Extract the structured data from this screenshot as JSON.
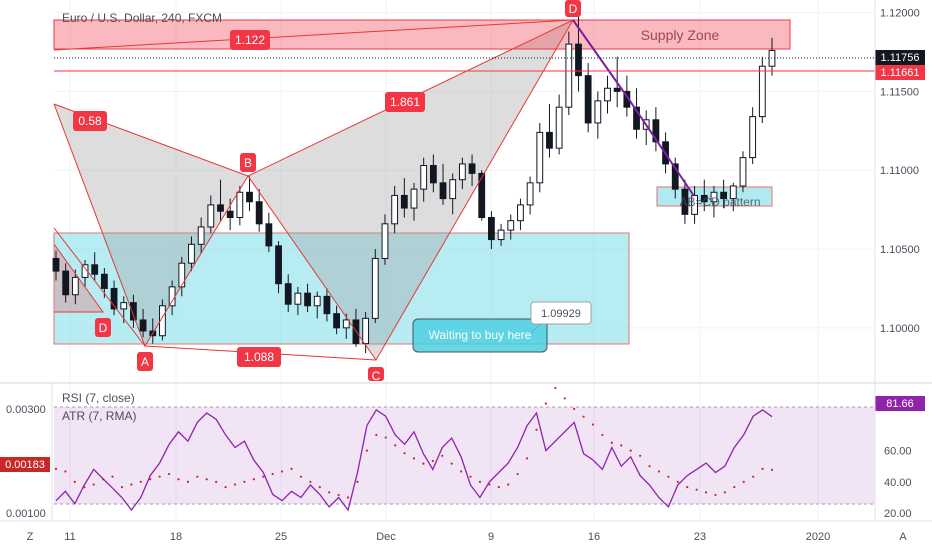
{
  "chart_data": {
    "type": "candlestick",
    "title": "Euro / U.S. Dollar, 240, FXCM",
    "symbol": "EURUSD",
    "timeframe": "240",
    "price_axis": {
      "ylim": [
        1.0965,
        1.1208
      ],
      "ticks": [
        "1.12000",
        "1.11500",
        "1.11000",
        "1.10500",
        "1.10000"
      ],
      "tick_values": [
        1.12,
        1.115,
        1.11,
        1.105,
        1.1
      ]
    },
    "time_axis": {
      "ticks": [
        "11",
        "18",
        "25",
        "Dec",
        "9",
        "16",
        "23",
        "2020"
      ]
    },
    "price_tags": [
      {
        "text": "1.11756",
        "value": 1.11756,
        "color": "#131722",
        "style": "dotted"
      },
      {
        "text": "1.11661",
        "value": 1.11661,
        "color": "#f23645",
        "style": "solid"
      }
    ],
    "candles": [
      {
        "o": 1.1044,
        "h": 1.1049,
        "l": 1.103,
        "c": 1.1036
      },
      {
        "o": 1.1036,
        "h": 1.1041,
        "l": 1.1016,
        "c": 1.1021
      },
      {
        "o": 1.1021,
        "h": 1.1037,
        "l": 1.1015,
        "c": 1.1032
      },
      {
        "o": 1.1032,
        "h": 1.1043,
        "l": 1.1026,
        "c": 1.104
      },
      {
        "o": 1.104,
        "h": 1.1048,
        "l": 1.103,
        "c": 1.1034
      },
      {
        "o": 1.1034,
        "h": 1.1038,
        "l": 1.1019,
        "c": 1.1025
      },
      {
        "o": 1.1025,
        "h": 1.103,
        "l": 1.1008,
        "c": 1.1012
      },
      {
        "o": 1.1012,
        "h": 1.102,
        "l": 1.1003,
        "c": 1.1016
      },
      {
        "o": 1.1016,
        "h": 1.1021,
        "l": 1.1,
        "c": 1.1005
      },
      {
        "o": 1.1005,
        "h": 1.1012,
        "l": 1.0994,
        "c": 1.0998
      },
      {
        "o": 1.0998,
        "h": 1.1006,
        "l": 1.099,
        "c": 1.0995
      },
      {
        "o": 1.0995,
        "h": 1.1018,
        "l": 1.0992,
        "c": 1.1014
      },
      {
        "o": 1.1014,
        "h": 1.103,
        "l": 1.1008,
        "c": 1.1026
      },
      {
        "o": 1.1026,
        "h": 1.1045,
        "l": 1.102,
        "c": 1.1041
      },
      {
        "o": 1.1041,
        "h": 1.1058,
        "l": 1.1036,
        "c": 1.1053
      },
      {
        "o": 1.1053,
        "h": 1.107,
        "l": 1.1047,
        "c": 1.1064
      },
      {
        "o": 1.1064,
        "h": 1.1084,
        "l": 1.106,
        "c": 1.1078
      },
      {
        "o": 1.1078,
        "h": 1.1094,
        "l": 1.1068,
        "c": 1.1074
      },
      {
        "o": 1.1074,
        "h": 1.1082,
        "l": 1.1062,
        "c": 1.107
      },
      {
        "o": 1.107,
        "h": 1.109,
        "l": 1.1065,
        "c": 1.1086
      },
      {
        "o": 1.1086,
        "h": 1.1096,
        "l": 1.1074,
        "c": 1.108
      },
      {
        "o": 1.108,
        "h": 1.1088,
        "l": 1.1061,
        "c": 1.1066
      },
      {
        "o": 1.1066,
        "h": 1.1073,
        "l": 1.1048,
        "c": 1.1052
      },
      {
        "o": 1.1052,
        "h": 1.1055,
        "l": 1.1022,
        "c": 1.1028
      },
      {
        "o": 1.1028,
        "h": 1.1034,
        "l": 1.101,
        "c": 1.1015
      },
      {
        "o": 1.1015,
        "h": 1.1026,
        "l": 1.1008,
        "c": 1.1022
      },
      {
        "o": 1.1022,
        "h": 1.1028,
        "l": 1.101,
        "c": 1.1014
      },
      {
        "o": 1.1014,
        "h": 1.1023,
        "l": 1.1006,
        "c": 1.102
      },
      {
        "o": 1.102,
        "h": 1.1025,
        "l": 1.1004,
        "c": 1.1009
      },
      {
        "o": 1.1009,
        "h": 1.1014,
        "l": 1.0996,
        "c": 1.1
      },
      {
        "o": 1.1,
        "h": 1.1009,
        "l": 1.0993,
        "c": 1.1005
      },
      {
        "o": 1.1005,
        "h": 1.1012,
        "l": 1.0988,
        "c": 1.099
      },
      {
        "o": 1.099,
        "h": 1.101,
        "l": 1.0984,
        "c": 1.1006
      },
      {
        "o": 1.1006,
        "h": 1.105,
        "l": 1.1003,
        "c": 1.1044
      },
      {
        "o": 1.1044,
        "h": 1.1072,
        "l": 1.104,
        "c": 1.1066
      },
      {
        "o": 1.1066,
        "h": 1.109,
        "l": 1.106,
        "c": 1.1084
      },
      {
        "o": 1.1084,
        "h": 1.1095,
        "l": 1.107,
        "c": 1.1076
      },
      {
        "o": 1.1076,
        "h": 1.1092,
        "l": 1.1068,
        "c": 1.1088
      },
      {
        "o": 1.1088,
        "h": 1.1108,
        "l": 1.108,
        "c": 1.1103
      },
      {
        "o": 1.1103,
        "h": 1.111,
        "l": 1.1086,
        "c": 1.1092
      },
      {
        "o": 1.1092,
        "h": 1.1104,
        "l": 1.1078,
        "c": 1.1082
      },
      {
        "o": 1.1082,
        "h": 1.1098,
        "l": 1.1072,
        "c": 1.1094
      },
      {
        "o": 1.1094,
        "h": 1.1108,
        "l": 1.1088,
        "c": 1.1104
      },
      {
        "o": 1.1104,
        "h": 1.111,
        "l": 1.109,
        "c": 1.1098
      },
      {
        "o": 1.1098,
        "h": 1.11,
        "l": 1.1068,
        "c": 1.107
      },
      {
        "o": 1.107,
        "h": 1.1074,
        "l": 1.105,
        "c": 1.1056
      },
      {
        "o": 1.1056,
        "h": 1.1066,
        "l": 1.1052,
        "c": 1.1062
      },
      {
        "o": 1.1062,
        "h": 1.1072,
        "l": 1.1056,
        "c": 1.1068
      },
      {
        "o": 1.1068,
        "h": 1.1082,
        "l": 1.1062,
        "c": 1.1078
      },
      {
        "o": 1.1078,
        "h": 1.1096,
        "l": 1.1072,
        "c": 1.1092
      },
      {
        "o": 1.1092,
        "h": 1.113,
        "l": 1.1086,
        "c": 1.1124
      },
      {
        "o": 1.1124,
        "h": 1.1142,
        "l": 1.1108,
        "c": 1.1114
      },
      {
        "o": 1.1114,
        "h": 1.1148,
        "l": 1.111,
        "c": 1.114
      },
      {
        "o": 1.114,
        "h": 1.1188,
        "l": 1.1135,
        "c": 1.118
      },
      {
        "o": 1.118,
        "h": 1.12,
        "l": 1.115,
        "c": 1.116
      },
      {
        "o": 1.116,
        "h": 1.1168,
        "l": 1.1124,
        "c": 1.113
      },
      {
        "o": 1.113,
        "h": 1.115,
        "l": 1.112,
        "c": 1.1144
      },
      {
        "o": 1.1144,
        "h": 1.116,
        "l": 1.1136,
        "c": 1.1152
      },
      {
        "o": 1.1152,
        "h": 1.1172,
        "l": 1.114,
        "c": 1.115
      },
      {
        "o": 1.115,
        "h": 1.116,
        "l": 1.1134,
        "c": 1.114
      },
      {
        "o": 1.114,
        "h": 1.1152,
        "l": 1.112,
        "c": 1.1126
      },
      {
        "o": 1.1126,
        "h": 1.1138,
        "l": 1.1116,
        "c": 1.1132
      },
      {
        "o": 1.1132,
        "h": 1.114,
        "l": 1.1112,
        "c": 1.1118
      },
      {
        "o": 1.1118,
        "h": 1.1124,
        "l": 1.1098,
        "c": 1.1104
      },
      {
        "o": 1.1104,
        "h": 1.1108,
        "l": 1.1082,
        "c": 1.1088
      },
      {
        "o": 1.1088,
        "h": 1.1094,
        "l": 1.1066,
        "c": 1.1072
      },
      {
        "o": 1.1072,
        "h": 1.109,
        "l": 1.1066,
        "c": 1.1084
      },
      {
        "o": 1.1084,
        "h": 1.1094,
        "l": 1.1074,
        "c": 1.108
      },
      {
        "o": 1.108,
        "h": 1.109,
        "l": 1.107,
        "c": 1.1086
      },
      {
        "o": 1.1086,
        "h": 1.1094,
        "l": 1.1076,
        "c": 1.1082
      },
      {
        "o": 1.1082,
        "h": 1.1092,
        "l": 1.1074,
        "c": 1.109
      },
      {
        "o": 1.109,
        "h": 1.1112,
        "l": 1.1086,
        "c": 1.1108
      },
      {
        "o": 1.1108,
        "h": 1.114,
        "l": 1.1104,
        "c": 1.1134
      },
      {
        "o": 1.1134,
        "h": 1.1172,
        "l": 1.113,
        "c": 1.1166
      },
      {
        "o": 1.1166,
        "h": 1.1184,
        "l": 1.116,
        "c": 1.1176
      }
    ],
    "patterns": [
      {
        "type": "harmonic",
        "points": [
          "D",
          "A",
          "B",
          "C",
          "D"
        ],
        "ratios": [
          "0.58",
          "1.861",
          "1.088",
          "1.122"
        ]
      },
      {
        "type": "abcd",
        "label": "AB=CD pattern",
        "color": "#7b1fa2"
      }
    ],
    "zones": [
      {
        "label": "Supply Zone",
        "from": 1.1182,
        "to": 1.12,
        "color": "#f23645"
      },
      {
        "label": "",
        "from": 1.0993,
        "to": 1.1063,
        "color": "#4dd0e1"
      },
      {
        "label": "AB=CD pattern",
        "from": 1.1081,
        "to": 1.1091,
        "color": "#4dd0e1"
      }
    ],
    "annotations": [
      {
        "text": "Waiting to buy here"
      },
      {
        "text": "1.09929",
        "value": 1.09929
      }
    ],
    "point_labels": [
      "D",
      "A",
      "B",
      "C",
      "D"
    ],
    "indicators": [
      {
        "name": "RSI (7, close)",
        "last_value": "81.66",
        "ylim": [
          15,
          100
        ],
        "ticks": [
          "60.00",
          "40.00",
          "20.00"
        ],
        "tick_values": [
          60,
          40,
          20
        ],
        "band": [
          20,
          80
        ],
        "values": [
          28,
          34,
          26,
          38,
          48,
          42,
          36,
          30,
          22,
          30,
          44,
          52,
          64,
          72,
          66,
          78,
          84,
          80,
          70,
          62,
          66,
          54,
          46,
          32,
          28,
          34,
          30,
          38,
          32,
          24,
          30,
          22,
          46,
          76,
          86,
          82,
          70,
          64,
          72,
          58,
          48,
          62,
          68,
          56,
          38,
          30,
          40,
          46,
          52,
          62,
          76,
          84,
          60,
          66,
          72,
          78,
          58,
          54,
          48,
          62,
          50,
          56,
          44,
          38,
          30,
          24,
          38,
          44,
          48,
          52,
          46,
          50,
          62,
          70,
          82,
          86,
          81.66
        ],
        "color": "#8e24aa"
      },
      {
        "name": "ATR (7, RMA)",
        "last_value": "0.00183",
        "ylim": [
          0.00085,
          0.0034
        ],
        "ticks": [
          "0.00300",
          "0.00100"
        ],
        "tick_values": [
          0.003,
          0.001
        ],
        "values": [
          0.00185,
          0.0018,
          0.0016,
          0.0015,
          0.00155,
          0.00165,
          0.0017,
          0.0015,
          0.00155,
          0.0016,
          0.00165,
          0.0017,
          0.00175,
          0.00165,
          0.0016,
          0.0017,
          0.00165,
          0.0016,
          0.0015,
          0.00155,
          0.0016,
          0.00165,
          0.0017,
          0.00175,
          0.0018,
          0.00185,
          0.0017,
          0.0016,
          0.0015,
          0.0014,
          0.00135,
          0.0013,
          0.0016,
          0.0022,
          0.0025,
          0.00245,
          0.0023,
          0.00215,
          0.00205,
          0.00195,
          0.002,
          0.0021,
          0.00195,
          0.0018,
          0.0017,
          0.0016,
          0.00155,
          0.0015,
          0.00155,
          0.00175,
          0.00205,
          0.0026,
          0.0031,
          0.0034,
          0.0032,
          0.003,
          0.00285,
          0.0027,
          0.0025,
          0.00235,
          0.0023,
          0.0022,
          0.0021,
          0.0019,
          0.0018,
          0.0017,
          0.0016,
          0.0015,
          0.00145,
          0.0014,
          0.00135,
          0.0014,
          0.0015,
          0.0016,
          0.0017,
          0.00185,
          0.00183
        ],
        "color": "#c62828"
      }
    ]
  },
  "ui": {
    "bottom_left_button": "Z",
    "bottom_right_button": "A"
  }
}
